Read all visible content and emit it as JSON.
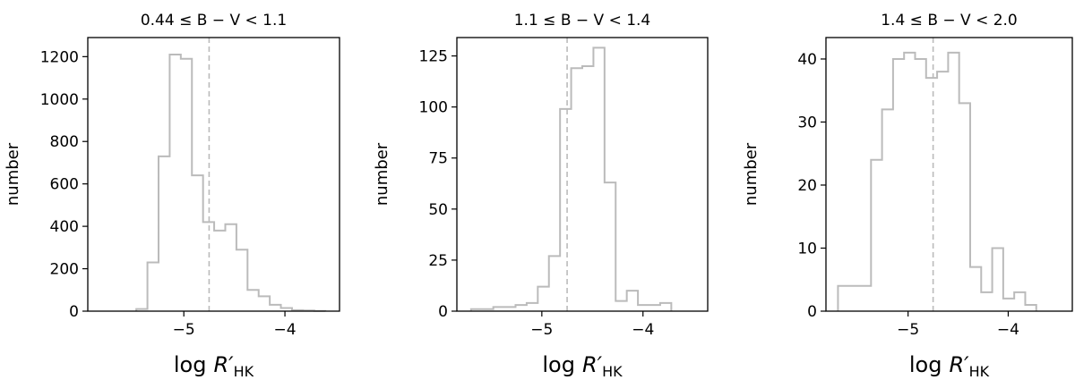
{
  "chart_data": [
    {
      "type": "histogram",
      "title": "0.44 ≤ B − V < 1.1",
      "xlabel": [
        "log",
        "R′",
        "HK"
      ],
      "ylabel": "number",
      "bins": [
        -5.47,
        -5.36,
        -5.25,
        -5.14,
        -5.03,
        -4.92,
        -4.81,
        -4.7,
        -4.59,
        -4.48,
        -4.37,
        -4.26,
        -4.15,
        -4.04,
        -3.93,
        -3.82,
        -3.71,
        -3.6
      ],
      "values": [
        10,
        230,
        730,
        1210,
        1190,
        640,
        420,
        380,
        410,
        290,
        100,
        70,
        30,
        15,
        5,
        3,
        1
      ],
      "color": "#bbbbbb",
      "vline": -4.75,
      "xlim": [
        -5.95,
        -3.46
      ],
      "ylim": [
        0,
        1290
      ],
      "xticks": [
        {
          "value": -5,
          "label": "−5"
        },
        {
          "value": -4,
          "label": "−4"
        }
      ],
      "yticks": [
        0,
        200,
        400,
        600,
        800,
        1000,
        1200
      ]
    },
    {
      "type": "histogram",
      "title": "1.1 ≤ B − V < 1.4",
      "xlabel": [
        "log",
        "R′",
        "HK"
      ],
      "ylabel": "number",
      "bins": [
        -5.7,
        -5.59,
        -5.48,
        -5.37,
        -5.26,
        -5.15,
        -5.04,
        -4.93,
        -4.82,
        -4.71,
        -4.6,
        -4.49,
        -4.38,
        -4.27,
        -4.16,
        -4.05,
        -3.94,
        -3.83,
        -3.72
      ],
      "values": [
        1,
        1,
        2,
        2,
        3,
        4,
        12,
        27,
        99,
        119,
        120,
        129,
        63,
        5,
        10,
        3,
        3,
        4
      ],
      "color": "#bbbbbb",
      "vline": -4.75,
      "xlim": [
        -5.84,
        -3.36
      ],
      "ylim": [
        0,
        134
      ],
      "xticks": [
        {
          "value": -5,
          "label": "−5"
        },
        {
          "value": -4,
          "label": "−4"
        }
      ],
      "yticks": [
        0,
        25,
        50,
        75,
        100,
        125
      ]
    },
    {
      "type": "histogram",
      "title": "1.4 ≤ B − V < 2.0",
      "xlabel": [
        "log",
        "R′",
        "HK"
      ],
      "ylabel": "number",
      "bins": [
        -5.7,
        -5.59,
        -5.48,
        -5.37,
        -5.26,
        -5.15,
        -5.04,
        -4.93,
        -4.82,
        -4.71,
        -4.6,
        -4.49,
        -4.38,
        -4.27,
        -4.16,
        -4.05,
        -3.94,
        -3.83,
        -3.72
      ],
      "values": [
        4,
        4,
        4,
        24,
        32,
        40,
        41,
        40,
        37,
        38,
        41,
        33,
        7,
        3,
        10,
        2,
        3,
        1
      ],
      "color": "#bbbbbb",
      "vline": -4.75,
      "xlim": [
        -5.82,
        -3.36
      ],
      "ylim": [
        0,
        43.4
      ],
      "xticks": [
        {
          "value": -5,
          "label": "−5"
        },
        {
          "value": -4,
          "label": "−4"
        }
      ],
      "yticks": [
        0,
        10,
        20,
        30,
        40
      ]
    }
  ]
}
